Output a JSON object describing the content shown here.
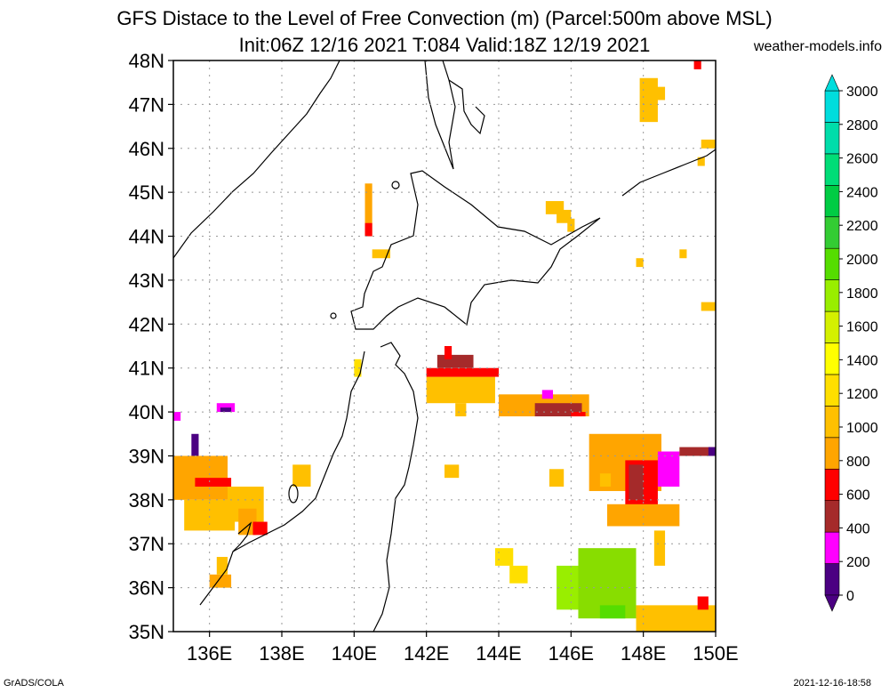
{
  "title_line1": "GFS Distace to the Level of Free Convection (m) (Parcel:500m above MSL)",
  "title_line2": "Init:06Z 12/16 2021 T:084 Valid:18Z 12/19 2021",
  "brand": "weather-models.info",
  "footer_left": "GrADS/COLA",
  "footer_right": "2021-12-16-18:58",
  "map": {
    "lon_range": [
      135,
      150
    ],
    "lat_range": [
      35,
      48
    ],
    "lat_ticks": [
      "35N",
      "36N",
      "37N",
      "38N",
      "39N",
      "40N",
      "41N",
      "42N",
      "43N",
      "44N",
      "45N",
      "46N",
      "47N",
      "48N"
    ],
    "lon_ticks": [
      "136E",
      "138E",
      "140E",
      "142E",
      "144E",
      "146E",
      "148E",
      "150E"
    ],
    "grid": "dotted"
  },
  "colorbar": {
    "labels": [
      "0",
      "200",
      "400",
      "600",
      "800",
      "1000",
      "1200",
      "1400",
      "1600",
      "1800",
      "2000",
      "2200",
      "2400",
      "2600",
      "2800",
      "3000"
    ],
    "colors": [
      "#4b0082",
      "#ff00ff",
      "#a52a2a",
      "#ff0000",
      "#ffa500",
      "#ffc000",
      "#ffdf00",
      "#ffff00",
      "#d4f000",
      "#99ee00",
      "#55dd00",
      "#33cc33",
      "#00cc44",
      "#00dd77",
      "#00ddaa",
      "#00dddd"
    ]
  },
  "shading": [
    {
      "lon": 135.0,
      "lat": 38.0,
      "w": 1.5,
      "h": 1.0,
      "c": "#ffa500"
    },
    {
      "lon": 135.3,
      "lat": 37.3,
      "w": 1.4,
      "h": 0.7,
      "c": "#ffc000"
    },
    {
      "lon": 136.5,
      "lat": 37.5,
      "w": 1.0,
      "h": 0.8,
      "c": "#ffc000"
    },
    {
      "lon": 135.6,
      "lat": 38.3,
      "w": 1.0,
      "h": 0.2,
      "c": "#ff0000"
    },
    {
      "lon": 136.8,
      "lat": 37.2,
      "w": 0.5,
      "h": 0.6,
      "c": "#ffa500"
    },
    {
      "lon": 137.2,
      "lat": 37.2,
      "w": 0.4,
      "h": 0.3,
      "c": "#ff0000"
    },
    {
      "lon": 136.0,
      "lat": 36.0,
      "w": 0.6,
      "h": 0.3,
      "c": "#ffa500"
    },
    {
      "lon": 136.2,
      "lat": 36.3,
      "w": 0.3,
      "h": 0.4,
      "c": "#ffc000"
    },
    {
      "lon": 135.0,
      "lat": 39.8,
      "w": 0.2,
      "h": 0.2,
      "c": "#ff00ff"
    },
    {
      "lon": 135.5,
      "lat": 39.0,
      "w": 0.2,
      "h": 0.5,
      "c": "#4b0082"
    },
    {
      "lon": 136.2,
      "lat": 40.0,
      "w": 0.5,
      "h": 0.2,
      "c": "#ff00ff"
    },
    {
      "lon": 136.3,
      "lat": 40.0,
      "w": 0.3,
      "h": 0.1,
      "c": "#4b0082"
    },
    {
      "lon": 138.3,
      "lat": 38.3,
      "w": 0.5,
      "h": 0.5,
      "c": "#ffc000"
    },
    {
      "lon": 140.3,
      "lat": 44.0,
      "w": 0.2,
      "h": 1.2,
      "c": "#ffa500"
    },
    {
      "lon": 140.3,
      "lat": 44.0,
      "w": 0.2,
      "h": 0.3,
      "c": "#ff0000"
    },
    {
      "lon": 140.5,
      "lat": 43.5,
      "w": 0.5,
      "h": 0.2,
      "c": "#ffc000"
    },
    {
      "lon": 140.0,
      "lat": 40.8,
      "w": 0.2,
      "h": 0.4,
      "c": "#ffdf00"
    },
    {
      "lon": 142.0,
      "lat": 40.2,
      "w": 1.9,
      "h": 0.6,
      "c": "#ffc000"
    },
    {
      "lon": 142.0,
      "lat": 40.8,
      "w": 2.0,
      "h": 0.2,
      "c": "#ff0000"
    },
    {
      "lon": 142.3,
      "lat": 41.0,
      "w": 1.0,
      "h": 0.3,
      "c": "#a52a2a"
    },
    {
      "lon": 142.5,
      "lat": 41.2,
      "w": 0.2,
      "h": 0.3,
      "c": "#ff0000"
    },
    {
      "lon": 144.0,
      "lat": 39.9,
      "w": 2.5,
      "h": 0.5,
      "c": "#ffa500"
    },
    {
      "lon": 145.0,
      "lat": 39.9,
      "w": 1.3,
      "h": 0.3,
      "c": "#a52a2a"
    },
    {
      "lon": 145.2,
      "lat": 40.3,
      "w": 0.3,
      "h": 0.2,
      "c": "#ff00ff"
    },
    {
      "lon": 146.0,
      "lat": 39.9,
      "w": 0.4,
      "h": 0.1,
      "c": "#ff0000"
    },
    {
      "lon": 146.5,
      "lat": 38.2,
      "w": 2.0,
      "h": 1.3,
      "c": "#ffa500"
    },
    {
      "lon": 147.5,
      "lat": 37.6,
      "w": 0.9,
      "h": 1.3,
      "c": "#ff0000"
    },
    {
      "lon": 147.6,
      "lat": 38.0,
      "w": 0.4,
      "h": 0.8,
      "c": "#a52a2a"
    },
    {
      "lon": 148.4,
      "lat": 38.3,
      "w": 0.6,
      "h": 0.8,
      "c": "#ff00ff"
    },
    {
      "lon": 149.0,
      "lat": 39.0,
      "w": 1.0,
      "h": 0.2,
      "c": "#a52a2a"
    },
    {
      "lon": 149.8,
      "lat": 39.0,
      "w": 0.2,
      "h": 0.2,
      "c": "#4b0082"
    },
    {
      "lon": 147.0,
      "lat": 37.4,
      "w": 2.0,
      "h": 0.5,
      "c": "#ffa500"
    },
    {
      "lon": 145.6,
      "lat": 35.5,
      "w": 2.0,
      "h": 1.0,
      "c": "#99ee00"
    },
    {
      "lon": 146.2,
      "lat": 35.3,
      "w": 1.6,
      "h": 1.6,
      "c": "#88dd00"
    },
    {
      "lon": 146.8,
      "lat": 35.3,
      "w": 0.7,
      "h": 0.3,
      "c": "#55dd00"
    },
    {
      "lon": 147.8,
      "lat": 35.0,
      "w": 2.2,
      "h": 0.6,
      "c": "#ffc000"
    },
    {
      "lon": 149.5,
      "lat": 35.5,
      "w": 0.3,
      "h": 0.3,
      "c": "#ff0000"
    },
    {
      "lon": 143.9,
      "lat": 36.5,
      "w": 0.5,
      "h": 0.4,
      "c": "#ffdf00"
    },
    {
      "lon": 144.3,
      "lat": 36.1,
      "w": 0.5,
      "h": 0.4,
      "c": "#ffdf00"
    },
    {
      "lon": 145.4,
      "lat": 38.3,
      "w": 0.4,
      "h": 0.4,
      "c": "#ffc000"
    },
    {
      "lon": 146.8,
      "lat": 38.3,
      "w": 0.3,
      "h": 0.3,
      "c": "#ffc000"
    },
    {
      "lon": 142.5,
      "lat": 38.5,
      "w": 0.4,
      "h": 0.3,
      "c": "#ffc000"
    },
    {
      "lon": 142.8,
      "lat": 39.9,
      "w": 0.3,
      "h": 0.3,
      "c": "#ffc000"
    },
    {
      "lon": 147.9,
      "lat": 46.6,
      "w": 0.5,
      "h": 1.0,
      "c": "#ffc000"
    },
    {
      "lon": 148.3,
      "lat": 47.1,
      "w": 0.3,
      "h": 0.3,
      "c": "#ffc000"
    },
    {
      "lon": 149.4,
      "lat": 47.8,
      "w": 0.2,
      "h": 0.2,
      "c": "#ff0000"
    },
    {
      "lon": 149.6,
      "lat": 46.0,
      "w": 0.4,
      "h": 0.2,
      "c": "#ffc000"
    },
    {
      "lon": 149.5,
      "lat": 45.6,
      "w": 0.2,
      "h": 0.2,
      "c": "#ffc000"
    },
    {
      "lon": 145.3,
      "lat": 44.5,
      "w": 0.5,
      "h": 0.3,
      "c": "#ffc000"
    },
    {
      "lon": 145.6,
      "lat": 44.3,
      "w": 0.4,
      "h": 0.3,
      "c": "#ffc000"
    },
    {
      "lon": 145.9,
      "lat": 44.1,
      "w": 0.2,
      "h": 0.3,
      "c": "#ffc000"
    },
    {
      "lon": 147.8,
      "lat": 43.3,
      "w": 0.2,
      "h": 0.2,
      "c": "#ffc000"
    },
    {
      "lon": 149.0,
      "lat": 43.5,
      "w": 0.2,
      "h": 0.2,
      "c": "#ffc000"
    },
    {
      "lon": 149.6,
      "lat": 42.3,
      "w": 0.4,
      "h": 0.2,
      "c": "#ffc000"
    },
    {
      "lon": 148.3,
      "lat": 36.5,
      "w": 0.3,
      "h": 0.8,
      "c": "#ffc000"
    }
  ]
}
